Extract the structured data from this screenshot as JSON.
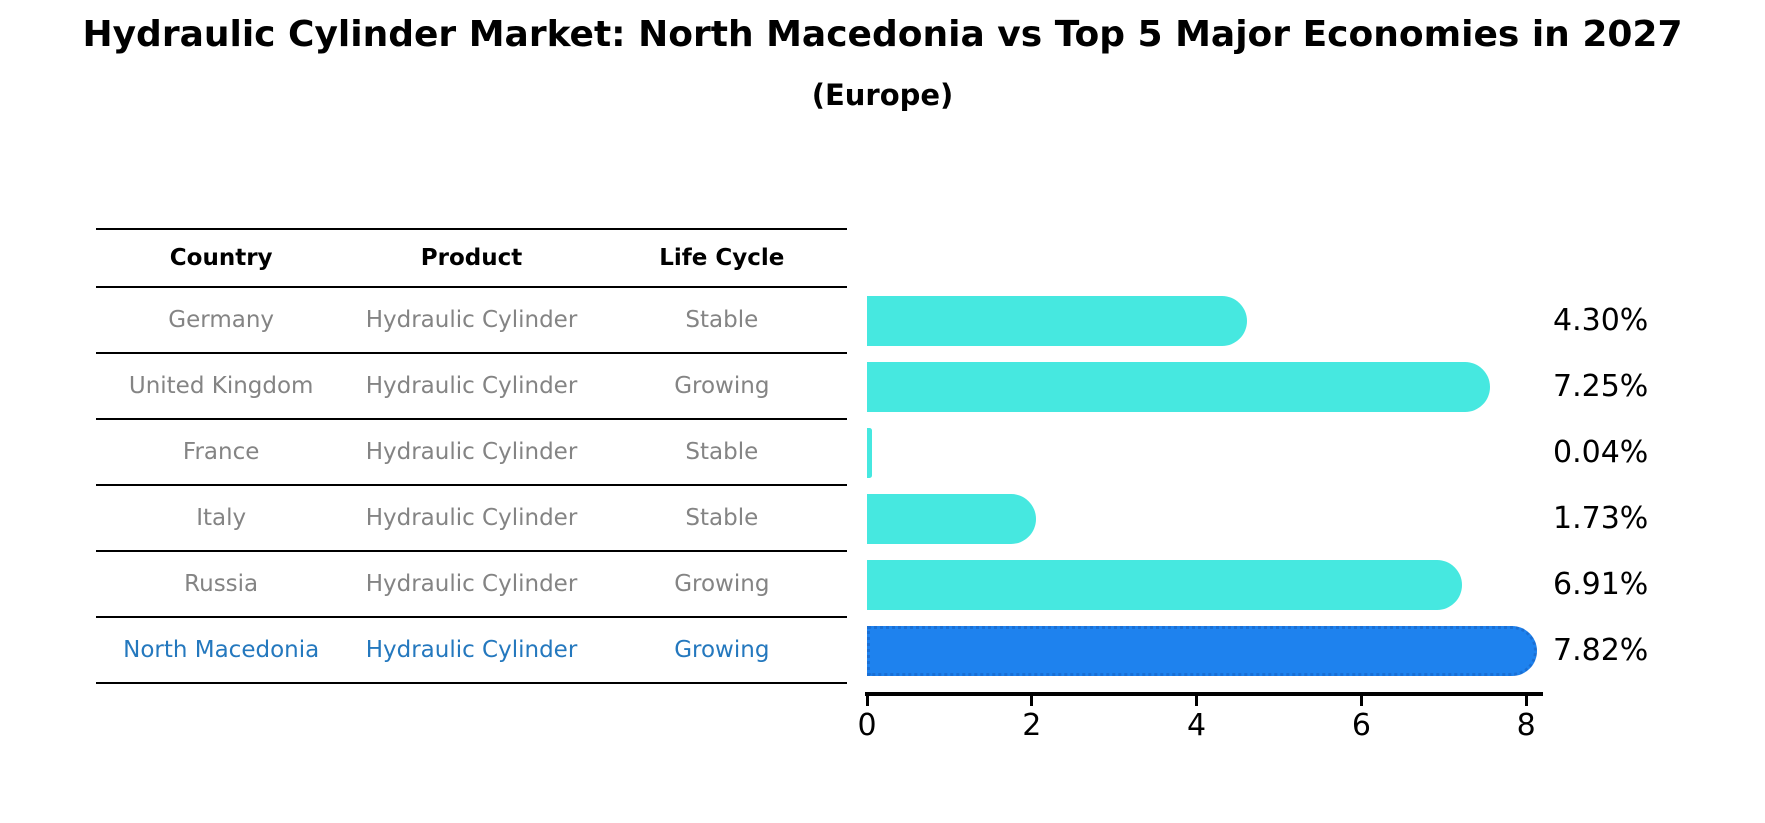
{
  "title": "Hydraulic Cylinder Market: North Macedonia vs Top 5 Major Economies in 2027",
  "subtitle": "(Europe)",
  "table": {
    "columns": [
      "Country",
      "Product",
      "Life Cycle"
    ],
    "rows": [
      {
        "country": "Germany",
        "product": "Hydraulic Cylinder",
        "life_cycle": "Stable",
        "highlight": false
      },
      {
        "country": "United Kingdom",
        "product": "Hydraulic Cylinder",
        "life_cycle": "Growing",
        "highlight": false
      },
      {
        "country": "France",
        "product": "Hydraulic Cylinder",
        "life_cycle": "Stable",
        "highlight": false
      },
      {
        "country": "Italy",
        "product": "Hydraulic Cylinder",
        "life_cycle": "Stable",
        "highlight": false
      },
      {
        "country": "Russia",
        "product": "Hydraulic Cylinder",
        "life_cycle": "Growing",
        "highlight": false
      },
      {
        "country": "North Macedonia",
        "product": "Hydraulic Cylinder",
        "life_cycle": "Growing",
        "highlight": true
      }
    ]
  },
  "chart_data": {
    "type": "bar",
    "orientation": "horizontal",
    "title": "Hydraulic Cylinder Market: North Macedonia vs Top 5 Major Economies in 2027 (Europe)",
    "categories": [
      "Germany",
      "United Kingdom",
      "France",
      "Italy",
      "Russia",
      "North Macedonia"
    ],
    "values": [
      4.3,
      7.25,
      0.04,
      1.73,
      6.91,
      7.82
    ],
    "value_labels": [
      "4.30%",
      "7.25%",
      "0.04%",
      "1.73%",
      "6.91%",
      "7.82%"
    ],
    "highlight_index": 5,
    "x_ticks": [
      0,
      2,
      4,
      6,
      8
    ],
    "xlim": [
      0,
      8.3
    ],
    "xlabel": "",
    "ylabel": "",
    "grid": false,
    "legend": false
  },
  "colors": {
    "bar_cyan": "#46e8e0",
    "bar_blue": "#1e82ee",
    "bar_blue_border": "#1a6fd4",
    "highlight_text": "#2478be",
    "row_text": "#848484",
    "header_text": "#000000",
    "axis": "#000000"
  }
}
